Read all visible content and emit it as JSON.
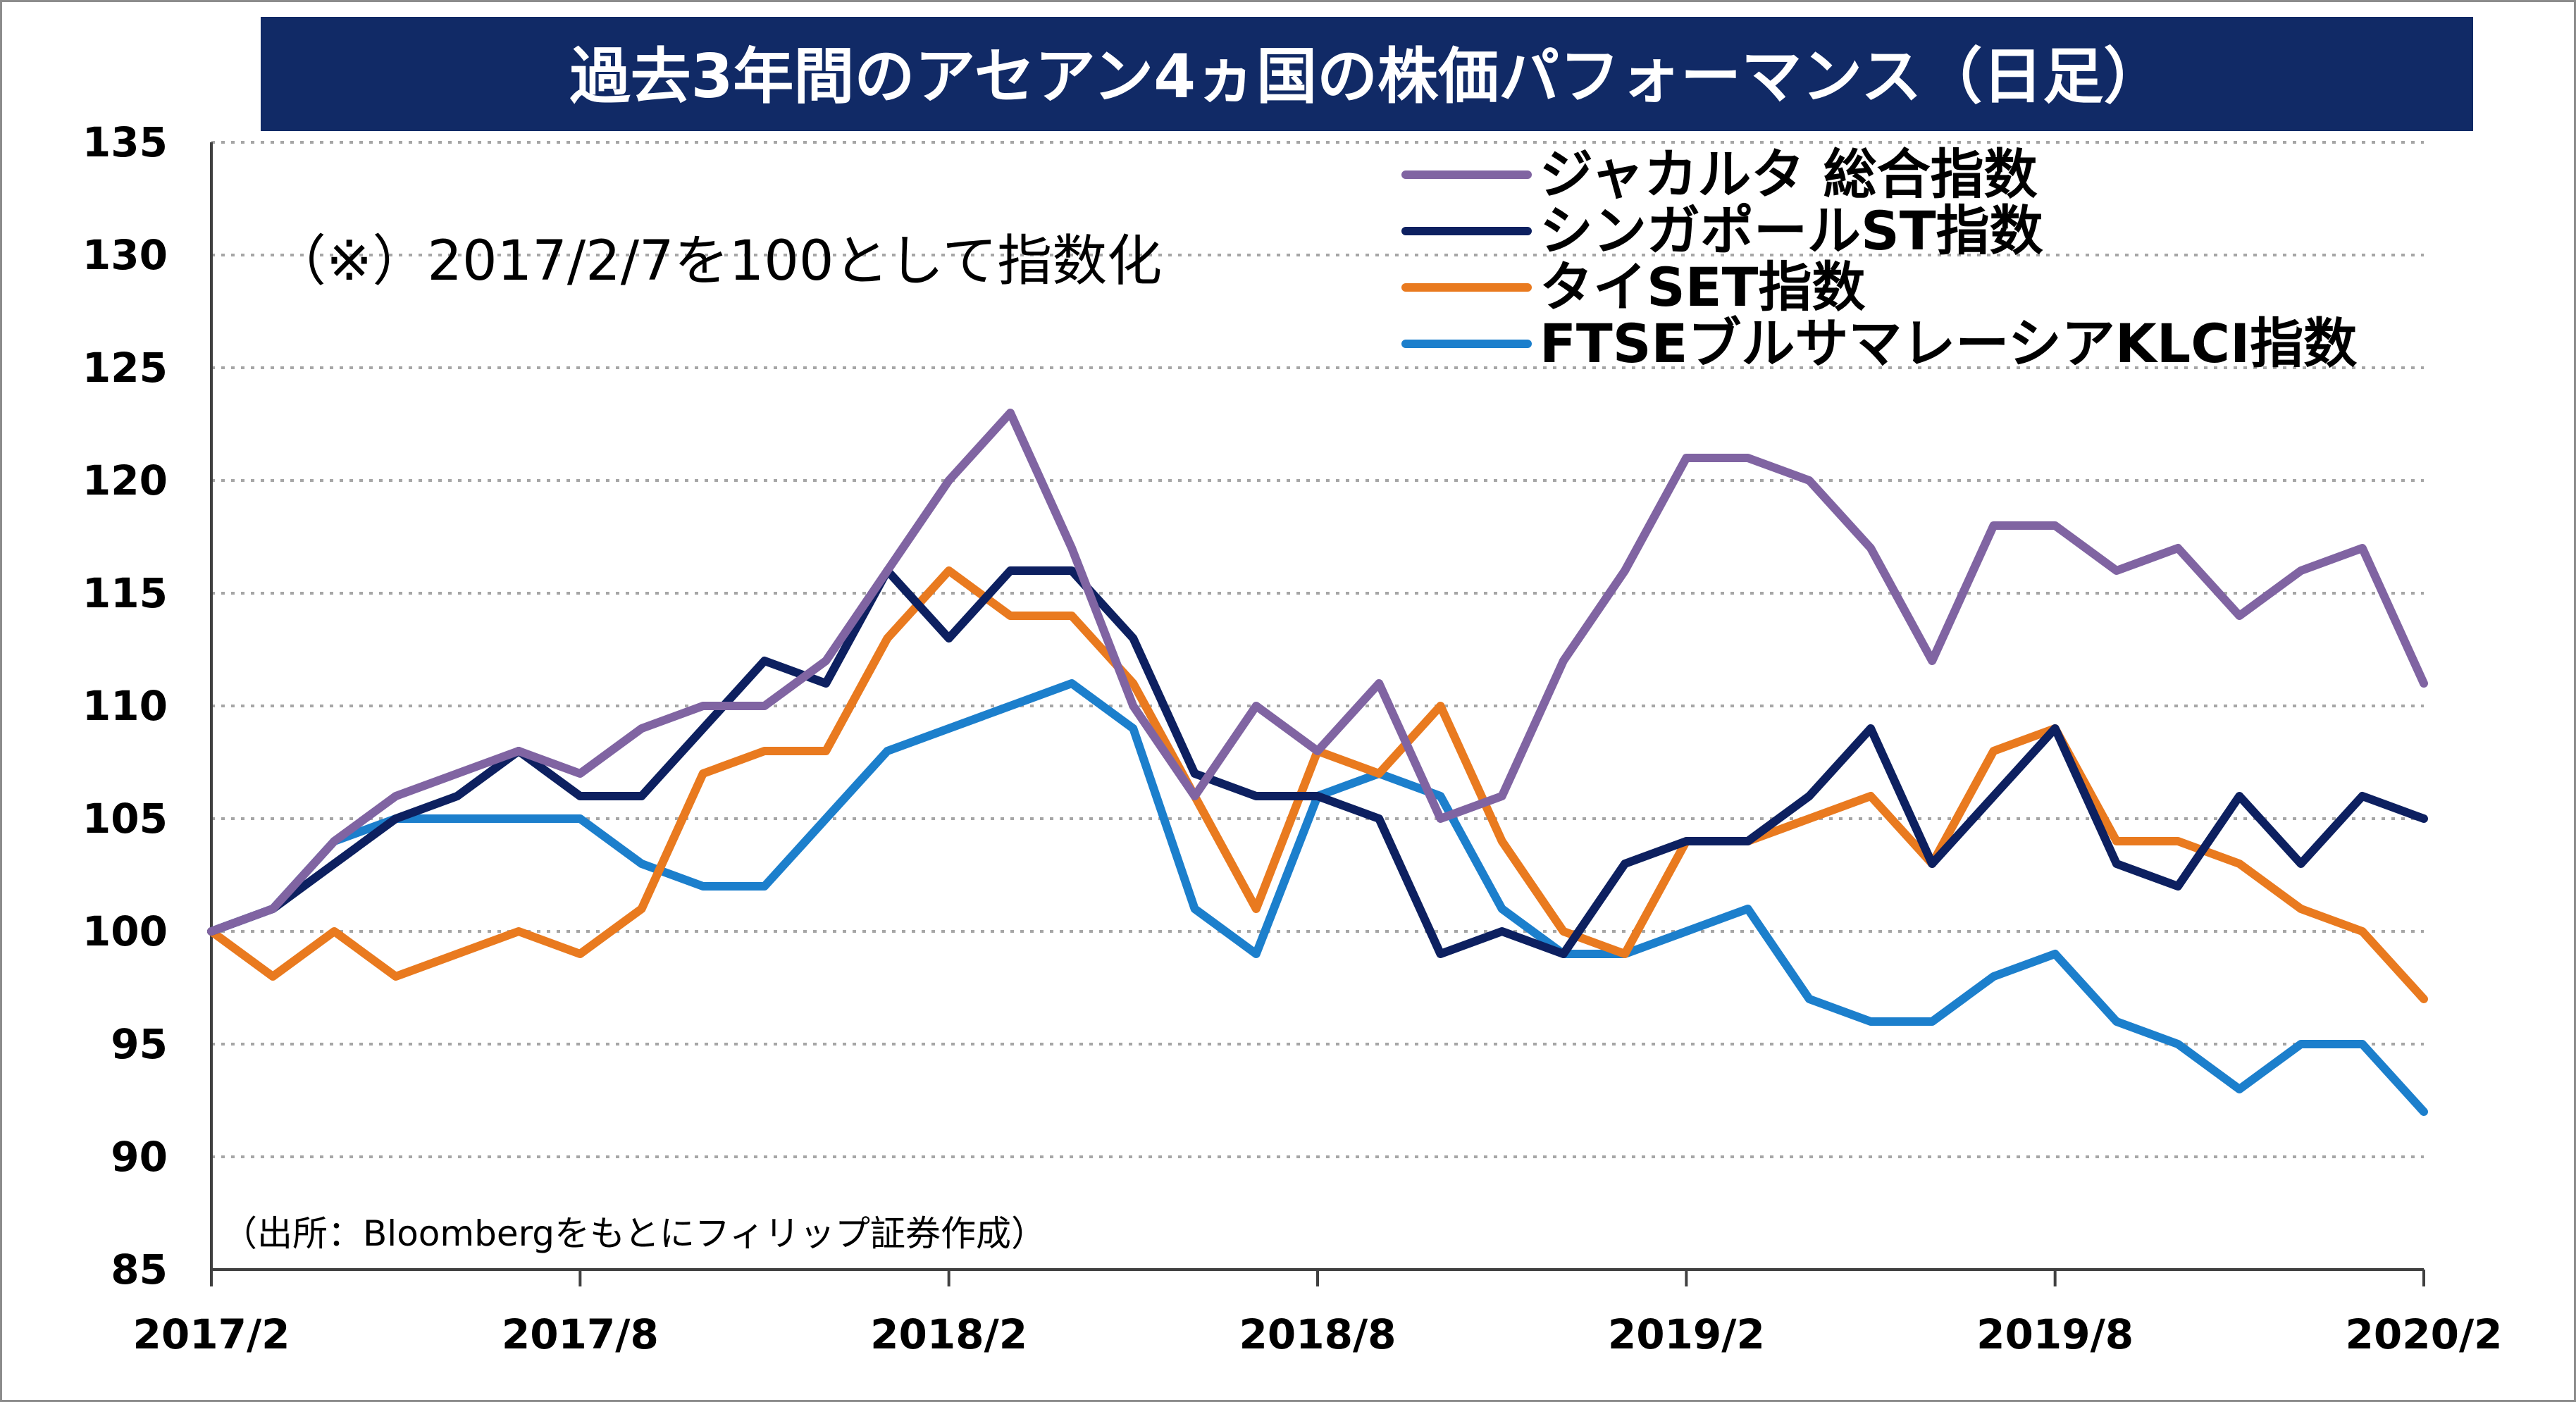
{
  "chart_data": {
    "type": "line",
    "title": "過去3年間のアセアン4ヵ国の株価パフォーマンス（日足）",
    "annotation": "（※）2017/2/7を100として指数化",
    "source": "（出所：Bloombergをもとにフィリップ証券作成）",
    "xlabel": "",
    "ylabel": "",
    "x_ticks": [
      "2017/2",
      "2017/8",
      "2018/2",
      "2018/8",
      "2019/2",
      "2019/8",
      "2020/2"
    ],
    "y_ticks": [
      135,
      130,
      125,
      120,
      115,
      110,
      105,
      100,
      95,
      90,
      85
    ],
    "ylim": [
      85,
      135
    ],
    "grid": "horizontal-dotted",
    "legend_position": "top-right",
    "x": [
      "2017/2",
      "2017/3",
      "2017/4",
      "2017/5",
      "2017/6",
      "2017/7",
      "2017/8",
      "2017/9",
      "2017/10",
      "2017/11",
      "2017/12",
      "2018/1",
      "2018/2",
      "2018/3",
      "2018/4",
      "2018/5",
      "2018/6",
      "2018/7",
      "2018/8",
      "2018/9",
      "2018/10",
      "2018/11",
      "2018/12",
      "2019/1",
      "2019/2",
      "2019/3",
      "2019/4",
      "2019/5",
      "2019/6",
      "2019/7",
      "2019/8",
      "2019/9",
      "2019/10",
      "2019/11",
      "2019/12",
      "2020/1",
      "2020/2"
    ],
    "series": [
      {
        "name": "ジャカルタ 総合指数",
        "color": "#8064a2",
        "values": [
          100,
          101,
          104,
          106,
          107,
          108,
          107,
          109,
          110,
          110,
          112,
          116,
          120,
          123,
          117,
          110,
          106,
          110,
          108,
          111,
          105,
          106,
          112,
          116,
          121,
          121,
          120,
          117,
          112,
          118,
          118,
          116,
          117,
          114,
          116,
          117,
          111
        ]
      },
      {
        "name": "シンガポールST指数",
        "color": "#0d2060",
        "values": [
          100,
          101,
          103,
          105,
          106,
          108,
          106,
          106,
          109,
          112,
          111,
          116,
          113,
          116,
          116,
          113,
          107,
          106,
          106,
          105,
          99,
          100,
          99,
          103,
          104,
          104,
          106,
          109,
          103,
          106,
          109,
          103,
          102,
          106,
          103,
          106,
          105
        ]
      },
      {
        "name": "タイSET指数",
        "color": "#e97a1f",
        "values": [
          100,
          98,
          100,
          98,
          99,
          100,
          99,
          101,
          107,
          108,
          108,
          113,
          116,
          114,
          114,
          111,
          106,
          101,
          108,
          107,
          110,
          104,
          100,
          99,
          104,
          104,
          105,
          106,
          103,
          108,
          109,
          104,
          104,
          103,
          101,
          100,
          97
        ]
      },
      {
        "name": "FTSEブルサマレーシアKLCI指数",
        "color": "#1c7fcc",
        "values": [
          100,
          101,
          104,
          105,
          105,
          105,
          105,
          103,
          102,
          102,
          105,
          108,
          109,
          110,
          111,
          109,
          101,
          99,
          106,
          107,
          106,
          101,
          99,
          99,
          100,
          101,
          97,
          96,
          96,
          98,
          99,
          96,
          95,
          93,
          95,
          95,
          92
        ]
      }
    ]
  }
}
